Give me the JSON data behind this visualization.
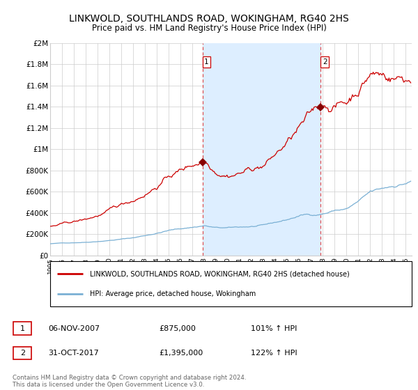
{
  "title": "LINKWOLD, SOUTHLANDS ROAD, WOKINGHAM, RG40 2HS",
  "subtitle": "Price paid vs. HM Land Registry's House Price Index (HPI)",
  "title_fontsize": 10,
  "subtitle_fontsize": 8.5,
  "background_color": "#ffffff",
  "plot_bg_color": "#ffffff",
  "grid_color": "#cccccc",
  "red_line_color": "#cc0000",
  "blue_line_color": "#7ab0d4",
  "shade_color": "#ddeeff",
  "xmin": 1995.0,
  "xmax": 2025.5,
  "ymin": 0,
  "ymax": 2000000,
  "yticks": [
    0,
    200000,
    400000,
    600000,
    800000,
    1000000,
    1200000,
    1400000,
    1600000,
    1800000,
    2000000
  ],
  "ytick_labels": [
    "£0",
    "£200K",
    "£400K",
    "£600K",
    "£800K",
    "£1M",
    "£1.2M",
    "£1.4M",
    "£1.6M",
    "£1.8M",
    "£2M"
  ],
  "xticks": [
    1995,
    1996,
    1997,
    1998,
    1999,
    2000,
    2001,
    2002,
    2003,
    2004,
    2005,
    2006,
    2007,
    2008,
    2009,
    2010,
    2011,
    2012,
    2013,
    2014,
    2015,
    2016,
    2017,
    2018,
    2019,
    2020,
    2021,
    2022,
    2023,
    2024,
    2025
  ],
  "sale1_x": 2007.85,
  "sale1_y": 875000,
  "sale2_x": 2017.83,
  "sale2_y": 1395000,
  "legend_red": "LINKWOLD, SOUTHLANDS ROAD, WOKINGHAM, RG40 2HS (detached house)",
  "legend_blue": "HPI: Average price, detached house, Wokingham",
  "table": [
    {
      "num": "1",
      "date": "06-NOV-2007",
      "price": "£875,000",
      "hpi": "101% ↑ HPI"
    },
    {
      "num": "2",
      "date": "31-OCT-2017",
      "price": "£1,395,000",
      "hpi": "122% ↑ HPI"
    }
  ],
  "footer": "Contains HM Land Registry data © Crown copyright and database right 2024.\nThis data is licensed under the Open Government Licence v3.0.",
  "vline1_x": 2007.85,
  "vline2_x": 2017.83
}
